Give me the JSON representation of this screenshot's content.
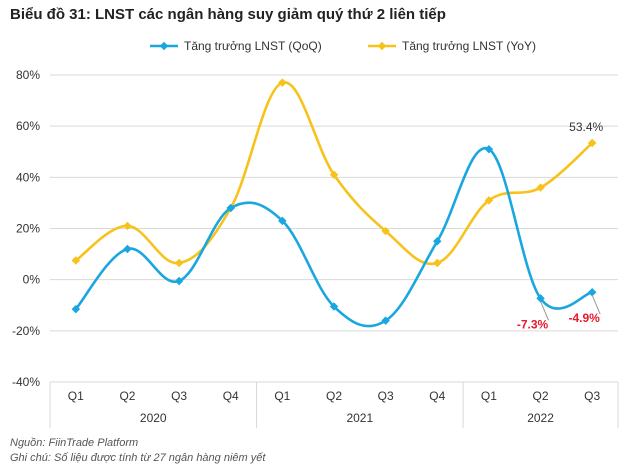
{
  "chart_data": {
    "type": "line",
    "title": "Biểu đồ 31: LNST các ngân hàng suy giảm quý thứ 2 liên tiếp",
    "quarters": [
      "Q1",
      "Q2",
      "Q3",
      "Q4",
      "Q1",
      "Q2",
      "Q3",
      "Q4",
      "Q1",
      "Q2",
      "Q3"
    ],
    "years": [
      {
        "label": "2020",
        "quarters": 4
      },
      {
        "label": "2021",
        "quarters": 4
      },
      {
        "label": "2022",
        "quarters": 3
      }
    ],
    "series": [
      {
        "name": "Tăng trưởng LNST (QoQ)",
        "color": "#1aa7e0",
        "values": [
          -11.5,
          12.0,
          -0.5,
          28.0,
          23.0,
          -10.5,
          -16.0,
          15.0,
          51.0,
          -7.3,
          -4.9
        ]
      },
      {
        "name": "Tăng trưởng LNST (YoY)",
        "color": "#f7c21b",
        "values": [
          7.5,
          21.0,
          6.5,
          28.0,
          77.0,
          41.0,
          19.0,
          6.5,
          31.0,
          36.0,
          53.4
        ]
      }
    ],
    "annotations": [
      {
        "series": 1,
        "index": 10,
        "text": "53.4%",
        "color": "#333333"
      },
      {
        "series": 0,
        "index": 9,
        "text": "-7.3%",
        "color": "#e8192c"
      },
      {
        "series": 0,
        "index": 10,
        "text": "-4.9%",
        "color": "#e8192c"
      }
    ],
    "ylim": [
      -40,
      80
    ],
    "yticks": [
      -40,
      -20,
      0,
      20,
      40,
      60,
      80
    ],
    "ytick_labels": [
      "-40%",
      "-20%",
      "0%",
      "20%",
      "40%",
      "60%",
      "80%"
    ],
    "grid": "horizontal",
    "legend": "top"
  },
  "footer": {
    "source": "Nguồn: FiinTrade Platform",
    "note": "Ghi chú: Số liệu được tính từ 27 ngân hàng niêm yết"
  }
}
